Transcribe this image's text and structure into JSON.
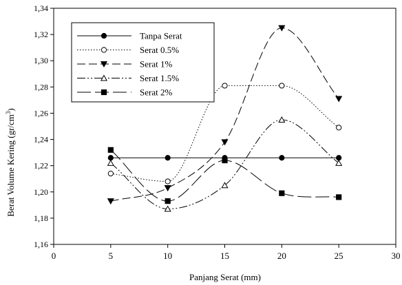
{
  "chart_data": {
    "type": "line",
    "xlabel": "Panjang Serat (mm)",
    "ylabel": "Berat Volume Kering (gr/cm",
    "ylabel_sup": "3",
    "ylabel_end": ")",
    "xlim": [
      0,
      30
    ],
    "ylim": [
      1.16,
      1.34
    ],
    "xticks": [
      "0",
      "5",
      "10",
      "15",
      "20",
      "25",
      "30"
    ],
    "yticks": [
      "1,16",
      "1,18",
      "1,20",
      "1,22",
      "1,24",
      "1,26",
      "1,28",
      "1,30",
      "1,32",
      "1,34"
    ],
    "grid": false,
    "legend_position": "top-left",
    "x": [
      5,
      10,
      15,
      20,
      25
    ],
    "series": [
      {
        "name": "Tanpa Serat",
        "marker": "circle-filled",
        "dash": "solid",
        "values": [
          1.226,
          1.226,
          1.226,
          1.226,
          1.226
        ]
      },
      {
        "name": "Serat 0.5%",
        "marker": "circle-open",
        "dash": "dotted",
        "values": [
          1.214,
          1.208,
          1.281,
          1.281,
          1.249
        ]
      },
      {
        "name": "Serat 1%",
        "marker": "triangle-down-filled",
        "dash": "dashed",
        "values": [
          1.193,
          1.203,
          1.238,
          1.325,
          1.271
        ]
      },
      {
        "name": "Serat 1.5%",
        "marker": "triangle-up-open",
        "dash": "dash-dot-dot",
        "values": [
          1.222,
          1.187,
          1.205,
          1.255,
          1.222
        ]
      },
      {
        "name": "Serat 2%",
        "marker": "square-filled",
        "dash": "long-dash",
        "values": [
          1.232,
          1.193,
          1.224,
          1.199,
          1.196
        ]
      }
    ]
  }
}
